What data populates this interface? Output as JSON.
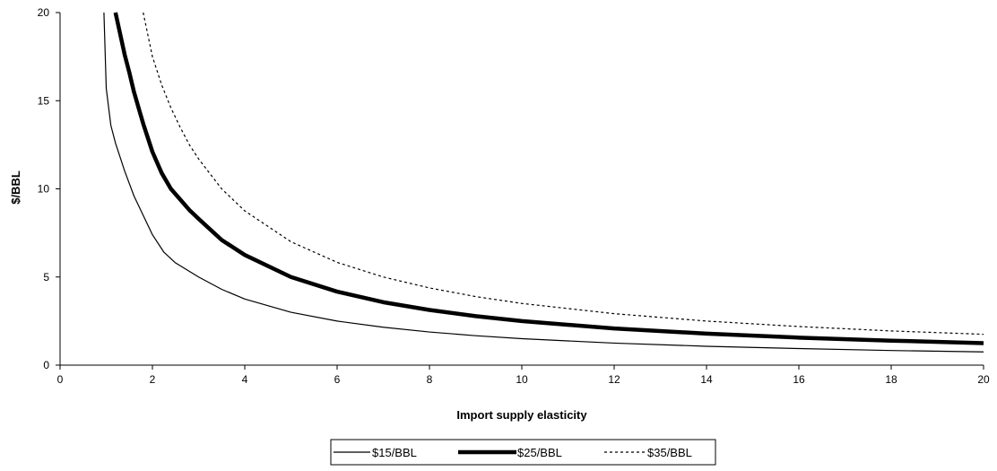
{
  "chart_data": {
    "type": "line",
    "title": "",
    "xlabel": "Import supply elasticity",
    "ylabel": "$/BBL",
    "xlim": [
      0,
      20
    ],
    "ylim": [
      0,
      20
    ],
    "x_ticks": [
      "0",
      "2",
      "4",
      "6",
      "8",
      "10",
      "12",
      "14",
      "16",
      "18",
      "20"
    ],
    "y_ticks": [
      "0",
      "5",
      "10",
      "15",
      "20"
    ],
    "grid": false,
    "legend_position": "bottom",
    "series": [
      {
        "name": "$15/BBL",
        "style": "thin-solid",
        "x": [
          0.95,
          1.0,
          1.1,
          1.2,
          1.4,
          1.6,
          1.8,
          2.0,
          2.25,
          2.5,
          2.75,
          3.0,
          3.5,
          4,
          5,
          6,
          7,
          8,
          9,
          10,
          12,
          14,
          16,
          18,
          20
        ],
        "y": [
          20.0,
          15.7,
          13.6,
          12.6,
          11.0,
          9.6,
          8.5,
          7.4,
          6.4,
          5.8,
          5.4,
          5.0,
          4.3,
          3.75,
          3.0,
          2.5,
          2.15,
          1.88,
          1.67,
          1.5,
          1.25,
          1.07,
          0.94,
          0.83,
          0.75
        ]
      },
      {
        "name": "$25/BBL",
        "style": "thick-solid",
        "x": [
          1.2,
          1.3,
          1.4,
          1.5,
          1.6,
          1.7,
          1.8,
          1.9,
          2.0,
          2.2,
          2.4,
          2.6,
          2.8,
          3.0,
          3.5,
          4,
          5,
          6,
          7,
          8,
          9,
          10,
          12,
          14,
          16,
          18,
          20
        ],
        "y": [
          20.0,
          18.8,
          17.6,
          16.6,
          15.5,
          14.6,
          13.7,
          12.9,
          12.1,
          10.9,
          10.0,
          9.4,
          8.8,
          8.3,
          7.1,
          6.25,
          5.0,
          4.17,
          3.57,
          3.13,
          2.78,
          2.5,
          2.08,
          1.79,
          1.56,
          1.39,
          1.25
        ]
      },
      {
        "name": "$35/BBL",
        "style": "dotted",
        "x": [
          1.8,
          2.0,
          2.2,
          2.4,
          2.6,
          2.8,
          3.0,
          3.5,
          4,
          5,
          6,
          7,
          8,
          9,
          10,
          12,
          14,
          16,
          18,
          20
        ],
        "y": [
          20.0,
          17.5,
          15.9,
          14.6,
          13.5,
          12.5,
          11.7,
          10.0,
          8.75,
          7.0,
          5.83,
          5.0,
          4.38,
          3.89,
          3.5,
          2.92,
          2.5,
          2.19,
          1.94,
          1.75
        ]
      }
    ]
  }
}
